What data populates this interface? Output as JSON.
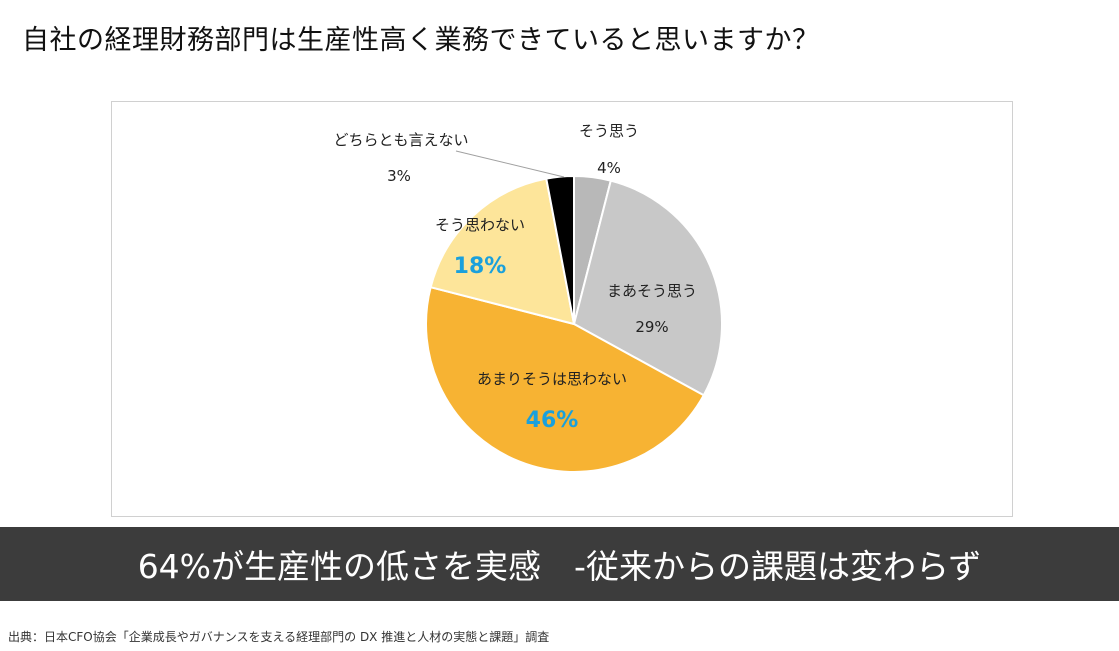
{
  "header": {
    "question": "自社の経理財務部門は生産性高く業務できていると思いますか？"
  },
  "chart_data": {
    "type": "pie",
    "categories": [
      "そう思う",
      "まあそう思う",
      "あまりそうは思わない",
      "そう思わない",
      "どちらとも言えない"
    ],
    "values": [
      4,
      29,
      46,
      18,
      3
    ],
    "value_labels": [
      "4%",
      "29%",
      "46%",
      "18%",
      "3%"
    ],
    "colors": [
      "#b8b8b8",
      "#c8c8c8",
      "#f7b333",
      "#fde59a",
      "#000000"
    ],
    "label_colors": [
      "#222222",
      "#222222",
      "#1aa0dc",
      "#1aa0dc",
      "#222222"
    ],
    "emphasized": [
      false,
      false,
      true,
      true,
      false
    ],
    "start_angle_deg": 0,
    "direction": "clockwise"
  },
  "banner": {
    "text": "64%が生産性の低さを実感　-従来からの課題は変わらず"
  },
  "footer": {
    "source": "出典：日本CFO協会「企業成長やガバナンスを支える経理部門の DX 推進と人材の実態と課題」調査"
  }
}
